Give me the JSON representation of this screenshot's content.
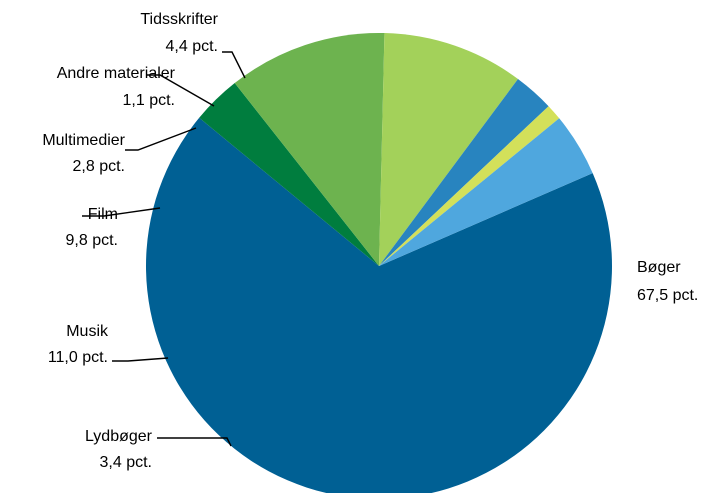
{
  "chart_data": {
    "type": "pie",
    "title": "",
    "unit": "pct.",
    "slices": [
      {
        "name": "Bøger",
        "value": 67.5,
        "value_label": "67,5 pct.",
        "color": "#006094"
      },
      {
        "name": "Lydbøger",
        "value": 3.4,
        "value_label": "3,4 pct.",
        "color": "#007d3e"
      },
      {
        "name": "Musik",
        "value": 11.0,
        "value_label": "11,0 pct.",
        "color": "#6db34f"
      },
      {
        "name": "Film",
        "value": 9.8,
        "value_label": "9,8 pct.",
        "color": "#a3d15a"
      },
      {
        "name": "Multimedier",
        "value": 2.8,
        "value_label": "2,8 pct.",
        "color": "#2884bf"
      },
      {
        "name": "Andre materialer",
        "value": 1.1,
        "value_label": "1,1 pct.",
        "color": "#d3e05a"
      },
      {
        "name": "Tidsskrifter",
        "value": 4.4,
        "value_label": "4,4 pct.",
        "color": "#4fa7de"
      }
    ],
    "start_angle_deg": -23.5,
    "direction": "clockwise",
    "legend": "none"
  }
}
